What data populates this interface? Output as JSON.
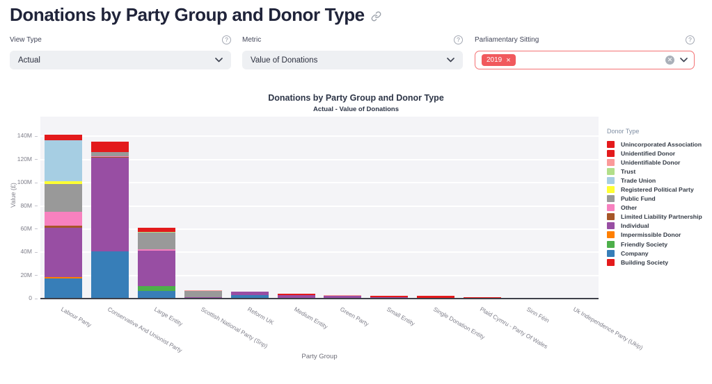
{
  "header": {
    "title": "Donations by Party Group and Donor Type"
  },
  "filters": {
    "view_type": {
      "label": "View Type",
      "value": "Actual"
    },
    "metric": {
      "label": "Metric",
      "value": "Value of Donations"
    },
    "parliamentary_sitting": {
      "label": "Parliamentary Sitting",
      "chips": [
        "2019"
      ]
    }
  },
  "icons": {
    "help": "?",
    "chip_remove": "×",
    "clear": "✕"
  },
  "colors": {
    "chip_red": "#f1595d",
    "field_border_red": "#f47173",
    "plot_background": "#f4f4f7",
    "axis_line": "#3e4049"
  },
  "chart_data": {
    "type": "bar",
    "stacked": true,
    "title": "Donations by Party Group and Donor Type",
    "subtitle": "Actual - Value of Donations",
    "xlabel": "Party Group",
    "ylabel": "Value (£)",
    "legend_title": "Donor Type",
    "legend_position": "right",
    "grid": "horizontal-white",
    "values_unit": "millions of £",
    "ylim": [
      0,
      157
    ],
    "yticks": [
      0,
      20,
      40,
      60,
      80,
      100,
      120,
      140
    ],
    "ytick_labels": [
      "0",
      "20M",
      "40M",
      "60M",
      "80M",
      "100M",
      "120M",
      "140M"
    ],
    "categories": [
      "Labour Party",
      "Conservative And Unionist Party",
      "Large Entity",
      "Scottish National Party (Snp)",
      "Reform UK",
      "Medium Entity",
      "Green Party",
      "Small Entity",
      "Single Donation Entity",
      "Plaid Cymru - Party Of Wales",
      "Sinn Féin",
      "Uk Independence Party (Ukip)"
    ],
    "series": [
      {
        "name": "Building Society",
        "color": "#e41a1c",
        "values": [
          0,
          0,
          0,
          0,
          0,
          0,
          0,
          0,
          0,
          0,
          0,
          0
        ]
      },
      {
        "name": "Company",
        "color": "#377eb8",
        "values": [
          17.5,
          40.5,
          6.6,
          0,
          2.8,
          0.7,
          0,
          0.6,
          0,
          0,
          0,
          0
        ]
      },
      {
        "name": "Friendly Society",
        "color": "#4daf4a",
        "values": [
          0,
          0,
          4.4,
          0,
          0,
          0,
          0,
          0,
          0,
          0,
          0,
          0
        ]
      },
      {
        "name": "Impermissible Donor",
        "color": "#ff7f00",
        "values": [
          1.2,
          0,
          0,
          0,
          0,
          0,
          0,
          0,
          0,
          0,
          0,
          0
        ]
      },
      {
        "name": "Individual",
        "color": "#984ea3",
        "values": [
          42.5,
          81,
          30.6,
          1.4,
          3.4,
          2.2,
          2.5,
          0.9,
          0.3,
          0,
          0,
          0.6
        ]
      },
      {
        "name": "Limited Liability Partnership",
        "color": "#a65628",
        "values": [
          2,
          1,
          0,
          0,
          0,
          0,
          0,
          0,
          0,
          0,
          0,
          0
        ]
      },
      {
        "name": "Other",
        "color": "#f781bf",
        "values": [
          11.5,
          0.6,
          0.7,
          0,
          0,
          0,
          0,
          0,
          0,
          0,
          0,
          0
        ]
      },
      {
        "name": "Public Fund",
        "color": "#999999",
        "values": [
          24,
          3.4,
          14.8,
          5.1,
          0,
          0.4,
          0,
          0,
          0,
          0,
          0.5,
          0
        ]
      },
      {
        "name": "Registered Political Party",
        "color": "#ffff33",
        "values": [
          2.5,
          0,
          0,
          0,
          0,
          0,
          0,
          0,
          0,
          0,
          0,
          0
        ]
      },
      {
        "name": "Trade Union",
        "color": "#a6cee3",
        "values": [
          35.5,
          0,
          0,
          0,
          0,
          0,
          0,
          0,
          0,
          0,
          0,
          0
        ]
      },
      {
        "name": "Trust",
        "color": "#b2df8a",
        "values": [
          0,
          0,
          0.6,
          0,
          0,
          0,
          0,
          0,
          0,
          0,
          0,
          0
        ]
      },
      {
        "name": "Unidentifiable Donor",
        "color": "#fb9a99",
        "values": [
          0,
          0,
          0,
          0.5,
          0,
          0,
          0.4,
          0,
          0,
          0.5,
          0,
          0
        ]
      },
      {
        "name": "Unidentified Donor",
        "color": "#e31a1c",
        "values": [
          4.5,
          9,
          3.4,
          0,
          0,
          0.9,
          0,
          0.7,
          2.0,
          0.8,
          0,
          0
        ]
      },
      {
        "name": "Unincorporated Association",
        "color": "#e41a1c",
        "values": [
          0,
          0,
          0,
          0,
          0,
          0,
          0,
          0,
          0,
          0,
          0,
          0
        ]
      }
    ]
  }
}
